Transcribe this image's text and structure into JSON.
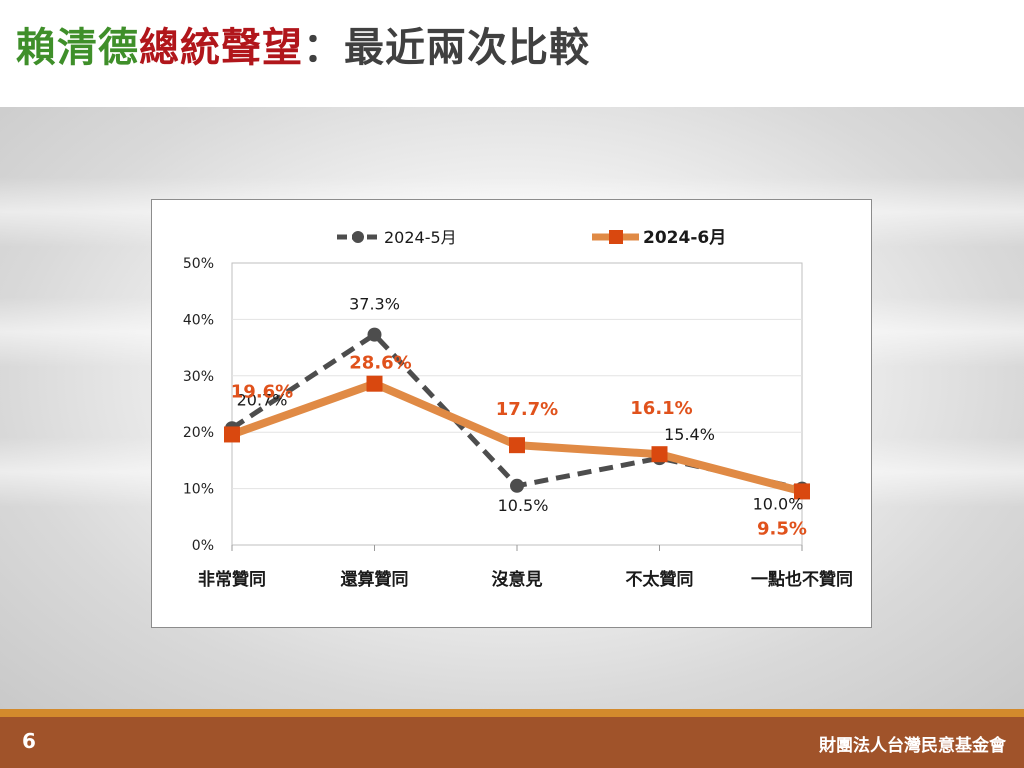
{
  "slide": {
    "title_part1": "賴清德",
    "title_part2": "總統聲望",
    "title_part3": "：最近兩次比較",
    "page_number": "6",
    "organization": "財團法人台灣民意基金會"
  },
  "colors": {
    "title_green": "#3f8f2a",
    "title_red": "#b1161b",
    "series_may": "#4d4d4d",
    "series_june_line": "#e08a45",
    "series_june_marker": "#d9480f",
    "label_june": "#e0521c",
    "footer": "#a0532a"
  },
  "chart_data": {
    "type": "line",
    "title": "",
    "xlabel": "",
    "ylabel": "",
    "categories": [
      "非常贊同",
      "還算贊同",
      "沒意見",
      "不太贊同",
      "一點也不贊同"
    ],
    "y_ticks": [
      "0%",
      "10%",
      "20%",
      "30%",
      "40%",
      "50%"
    ],
    "ylim": [
      0,
      50
    ],
    "grid": true,
    "legend_position": "top",
    "series": [
      {
        "name": "2024-5月",
        "style": "dashed line, circle markers",
        "values": [
          20.7,
          37.3,
          10.5,
          15.4,
          10.0
        ],
        "labels": [
          "20.7%",
          "37.3%",
          "10.5%",
          "15.4%",
          "10.0%"
        ]
      },
      {
        "name": "2024-6月",
        "style": "solid line, square markers",
        "values": [
          19.6,
          28.6,
          17.7,
          16.1,
          9.5
        ],
        "labels": [
          "19.6%",
          "28.6%",
          "17.7%",
          "16.1%",
          "9.5%"
        ]
      }
    ]
  }
}
